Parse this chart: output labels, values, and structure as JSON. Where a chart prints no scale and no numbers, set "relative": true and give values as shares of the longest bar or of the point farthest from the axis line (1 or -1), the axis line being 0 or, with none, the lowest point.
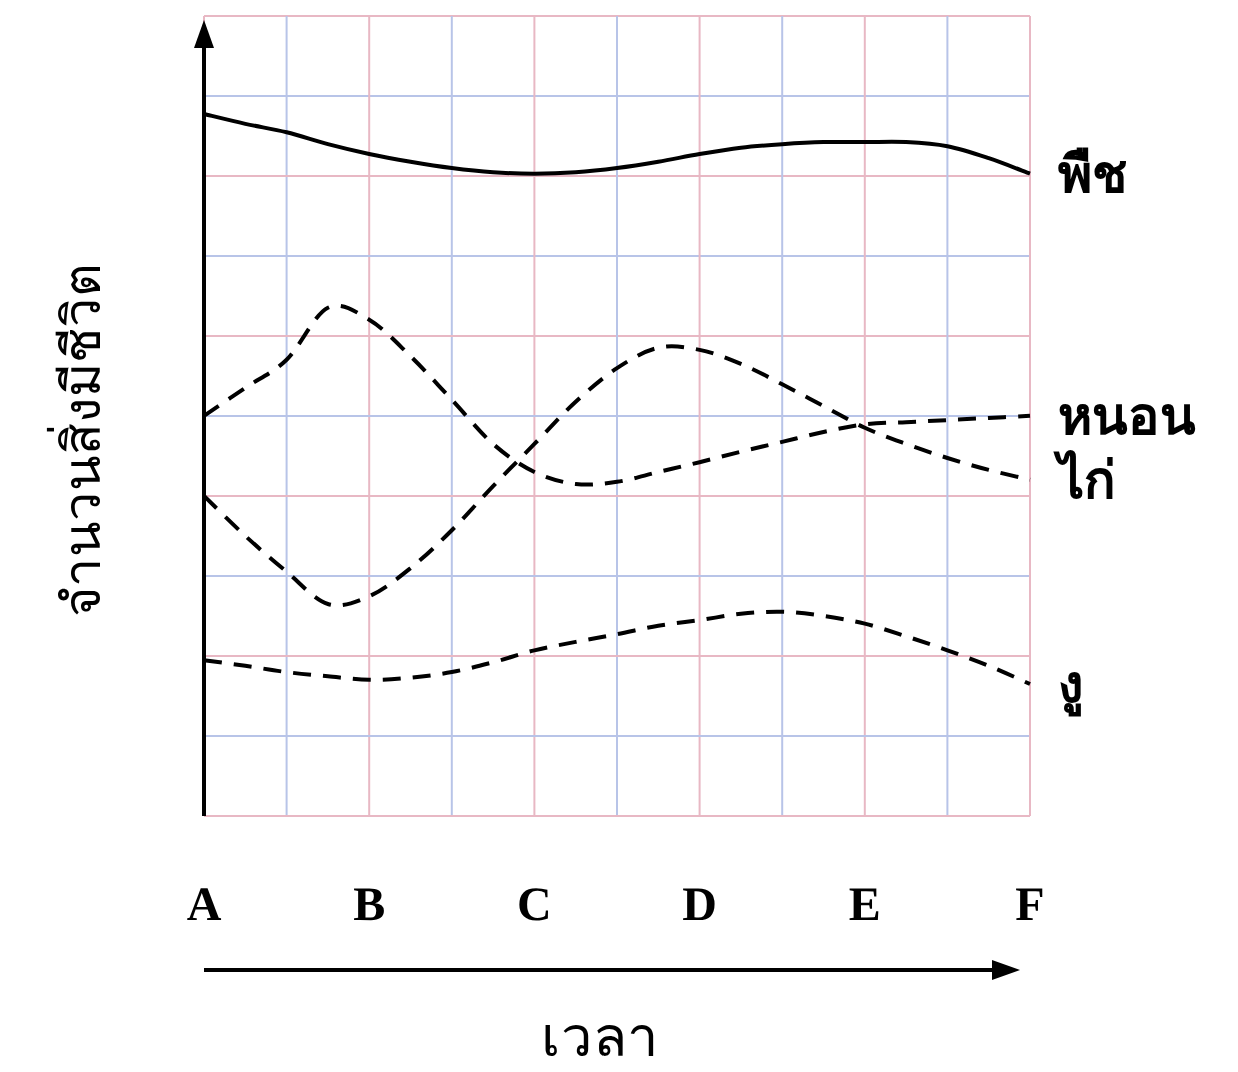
{
  "chart_data": {
    "type": "line",
    "relative": true,
    "xlabel": "เวลา",
    "ylabel": "จำนวนสิ่งมีชีวิต",
    "tick_labels": "x",
    "grid": true,
    "categories": [
      "A",
      null,
      null,
      null,
      "B",
      null,
      null,
      null,
      "C",
      null,
      null,
      null,
      "D",
      null,
      null,
      null,
      "E",
      null,
      null,
      null,
      "F"
    ],
    "series": [
      {
        "name": "พืช",
        "color": "#000000",
        "line_style": "solid",
        "values": [
          1.0,
          0.986,
          0.974,
          0.957,
          0.943,
          0.932,
          0.923,
          0.917,
          0.915,
          0.917,
          0.923,
          0.932,
          0.943,
          0.952,
          0.957,
          0.96,
          0.96,
          0.96,
          0.954,
          0.937,
          0.915
        ]
      },
      {
        "name": "หนอน",
        "color": "#000000",
        "line_style": "dashed",
        "values": [
          0.57,
          0.61,
          0.65,
          0.724,
          0.707,
          0.655,
          0.593,
          0.53,
          0.49,
          0.473,
          0.476,
          0.49,
          0.504,
          0.519,
          0.533,
          0.547,
          0.558,
          0.561,
          0.564,
          0.567,
          0.57
        ]
      },
      {
        "name": "ไก่",
        "color": "#000000",
        "line_style": "dashed",
        "values": [
          0.456,
          0.399,
          0.348,
          0.302,
          0.313,
          0.353,
          0.407,
          0.47,
          0.53,
          0.59,
          0.638,
          0.667,
          0.664,
          0.644,
          0.615,
          0.584,
          0.553,
          0.53,
          0.51,
          0.493,
          0.479
        ]
      },
      {
        "name": "งู",
        "color": "#000000",
        "line_style": "dashed",
        "values": [
          0.222,
          0.214,
          0.205,
          0.199,
          0.194,
          0.197,
          0.205,
          0.219,
          0.236,
          0.248,
          0.259,
          0.271,
          0.279,
          0.288,
          0.291,
          0.285,
          0.274,
          0.256,
          0.236,
          0.214,
          0.188
        ]
      }
    ]
  }
}
